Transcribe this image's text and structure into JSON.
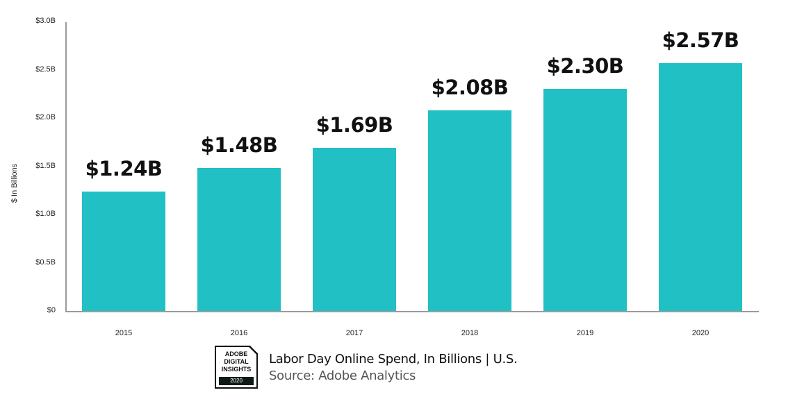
{
  "chart_data": {
    "type": "bar",
    "title": "Labor Day Online Spend, In Billions | U.S.",
    "source": "Source: Adobe Analytics",
    "xlabel": "",
    "ylabel": "$ In Billions",
    "categories": [
      "2015",
      "2016",
      "2017",
      "2018",
      "2019",
      "2020"
    ],
    "values": [
      1.24,
      1.48,
      1.69,
      2.08,
      2.3,
      2.57
    ],
    "value_labels": [
      "$1.24B",
      "$1.48B",
      "$1.69B",
      "$2.08B",
      "$2.30B",
      "$2.57B"
    ],
    "ylim": [
      0,
      3.0
    ],
    "yticks": [
      0,
      0.5,
      1.0,
      1.5,
      2.0,
      2.5,
      3.0
    ],
    "ytick_labels": [
      "$0",
      "$0.5B",
      "$1.0B",
      "$1.5B",
      "$2.0B",
      "$2.5B",
      "$3.0B"
    ],
    "grid": false,
    "legend": null,
    "bar_color": "#21c0c4"
  },
  "badge": {
    "lines": [
      "ADOBE",
      "DIGITAL",
      "INSIGHTS"
    ],
    "year": "2020"
  },
  "footer": {
    "title": "Labor Day Online Spend, In Billions |  U.S.",
    "source": "Source: Adobe Analytics"
  }
}
